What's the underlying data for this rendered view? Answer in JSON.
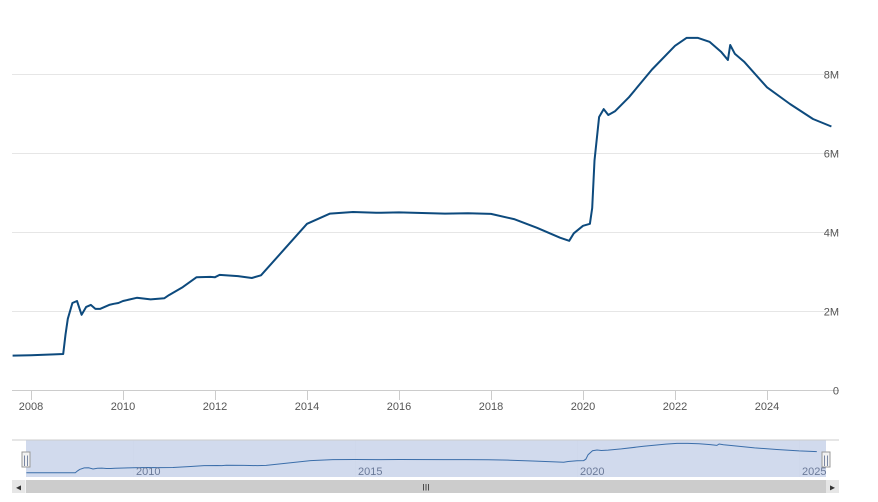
{
  "colors": {
    "series": "#0d4a7d",
    "grid": "#e6e6e6",
    "axis": "#cccccc",
    "navigator_mask": "#ccd6eb",
    "navigator_series": "#3b6eaa",
    "scrollbar_bg": "#f2f2f2",
    "scrollbar_thumb": "#cccccc"
  },
  "chart_data": {
    "type": "line",
    "title": "",
    "xlabel": "",
    "ylabel": "",
    "xlim": [
      2007.6,
      2025.4
    ],
    "ylim": [
      0,
      9000000
    ],
    "grid": true,
    "legend": "none",
    "x_ticks": [
      "2008",
      "2010",
      "2012",
      "2014",
      "2016",
      "2018",
      "2020",
      "2022",
      "2024"
    ],
    "y_ticks": [
      {
        "value": 0,
        "label": "0"
      },
      {
        "value": 2000000,
        "label": "2M"
      },
      {
        "value": 4000000,
        "label": "4M"
      },
      {
        "value": 6000000,
        "label": "6M"
      },
      {
        "value": 8000000,
        "label": "8M"
      }
    ],
    "series": [
      {
        "name": "",
        "x": [
          2007.6,
          2008.0,
          2008.5,
          2008.7,
          2008.75,
          2008.8,
          2008.9,
          2009.0,
          2009.1,
          2009.2,
          2009.3,
          2009.4,
          2009.5,
          2009.6,
          2009.7,
          2009.8,
          2009.9,
          2010.0,
          2010.3,
          2010.6,
          2010.9,
          2011.0,
          2011.3,
          2011.6,
          2011.9,
          2012.0,
          2012.1,
          2012.5,
          2012.8,
          2013.0,
          2013.5,
          2014.0,
          2014.5,
          2015.0,
          2015.5,
          2016.0,
          2017.0,
          2017.5,
          2018.0,
          2018.5,
          2019.0,
          2019.5,
          2019.7,
          2019.8,
          2020.0,
          2020.15,
          2020.2,
          2020.25,
          2020.35,
          2020.45,
          2020.55,
          2020.7,
          2021.0,
          2021.5,
          2022.0,
          2022.25,
          2022.5,
          2022.75,
          2023.0,
          2023.15,
          2023.2,
          2023.3,
          2023.5,
          2024.0,
          2024.5,
          2025.0,
          2025.4
        ],
        "values": [
          870000,
          880000,
          900000,
          910000,
          1400000,
          1800000,
          2200000,
          2250000,
          1900000,
          2100000,
          2150000,
          2050000,
          2050000,
          2100000,
          2150000,
          2180000,
          2200000,
          2250000,
          2330000,
          2290000,
          2320000,
          2400000,
          2600000,
          2850000,
          2860000,
          2850000,
          2910000,
          2880000,
          2830000,
          2900000,
          3550000,
          4200000,
          4460000,
          4500000,
          4480000,
          4490000,
          4460000,
          4470000,
          4450000,
          4320000,
          4100000,
          3850000,
          3770000,
          3960000,
          4150000,
          4200000,
          4600000,
          5800000,
          6900000,
          7100000,
          6950000,
          7050000,
          7400000,
          8100000,
          8700000,
          8900000,
          8900000,
          8800000,
          8550000,
          8340000,
          8720000,
          8500000,
          8300000,
          7650000,
          7230000,
          6850000,
          6660000
        ]
      }
    ]
  },
  "navigator": {
    "labels": [
      "2010",
      "2015",
      "2020",
      "2025"
    ],
    "scroll_glyph": "III",
    "left_arrow": "◂",
    "right_arrow": "▸",
    "handle_left": "||",
    "handle_right": "||"
  }
}
